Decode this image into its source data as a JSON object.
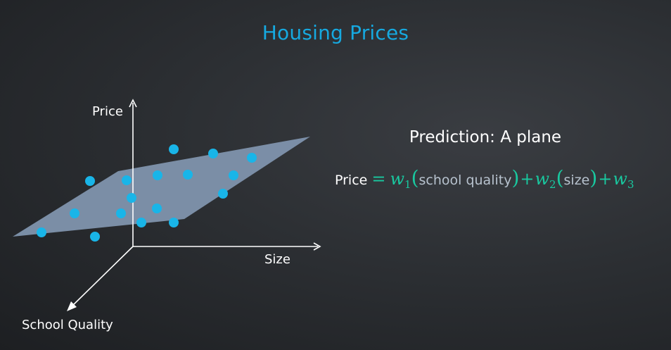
{
  "title": "Housing Prices",
  "diagram": {
    "axes": {
      "vertical": "Price",
      "horizontal": "Size",
      "depth": "School Quality"
    },
    "plane_color": "#7f94ad",
    "point_color": "#19b5e8"
  },
  "prediction": {
    "heading": "Prediction: A plane",
    "formula": {
      "lhs": "Price",
      "equals": "=",
      "w1": "w",
      "w1_sub": "1",
      "term1": "school quality",
      "plus1": "+",
      "w2": "w",
      "w2_sub": "2",
      "term2": "size",
      "plus2": "+",
      "w3": "w",
      "w3_sub": "3",
      "open_paren": "(",
      "close_paren": ")",
      "color": "#19c9a0"
    }
  }
}
